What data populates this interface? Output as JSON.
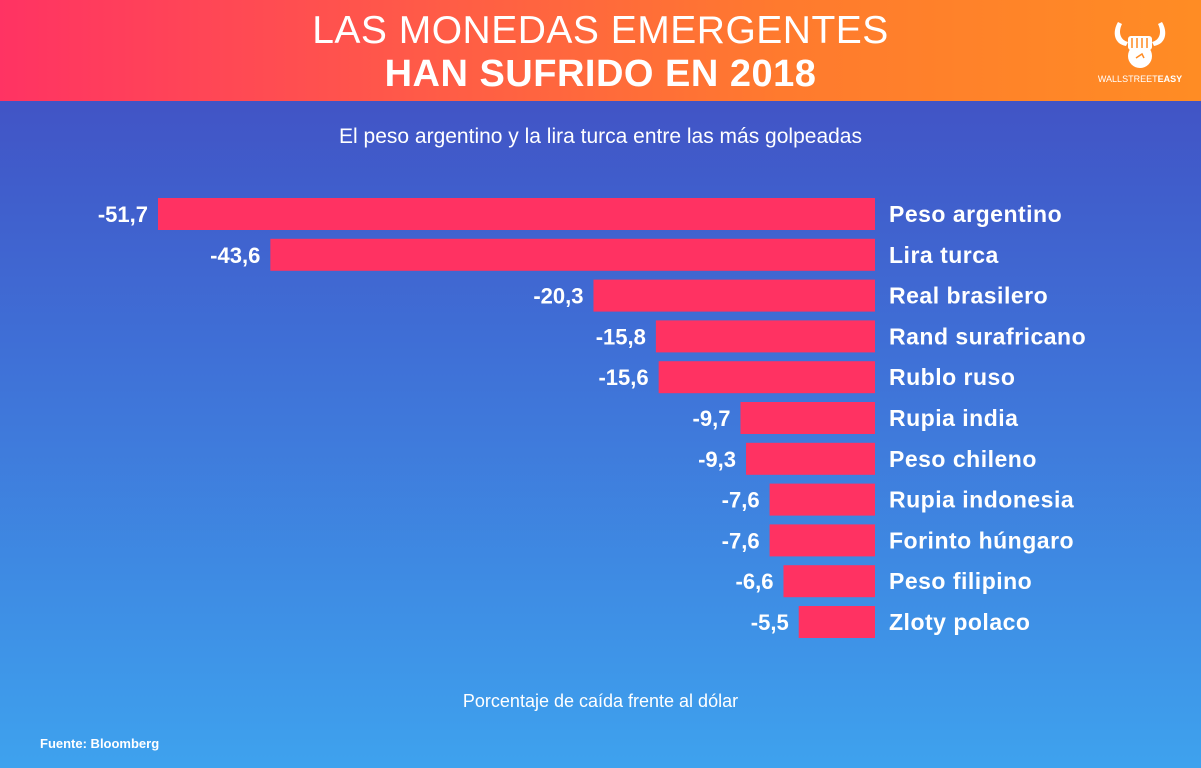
{
  "header": {
    "title_line1": "LAS MONEDAS EMERGENTES",
    "title_line2": "HAN SUFRIDO EN 2018",
    "logo_text_light": "WALLSTREET",
    "logo_text_bold": "EASY"
  },
  "colors": {
    "bar": "#ff3262",
    "header_start": "#ff3363",
    "header_end": "#ff8c24",
    "background_top": "#4249bf",
    "background_bottom": "#3ea2ee"
  },
  "chart_data": {
    "type": "bar",
    "orientation": "horizontal",
    "title": "LAS MONEDAS EMERGENTES HAN SUFRIDO EN 2018",
    "subtitle": "El peso argentino y la lira turca entre las más golpeadas",
    "xlabel": "Porcentaje de caída frente al dólar",
    "ylabel": "",
    "categories": [
      "Peso argentino",
      "Lira turca",
      "Real brasilero",
      "Rand surafricano",
      "Rublo ruso",
      "Rupia india",
      "Peso chileno",
      "Rupia indonesia",
      "Forinto húngaro",
      "Peso filipino",
      "Zloty polaco"
    ],
    "values": [
      -51.7,
      -43.6,
      -20.3,
      -15.8,
      -15.6,
      -9.7,
      -9.3,
      -7.6,
      -7.6,
      -6.6,
      -5.5
    ],
    "value_labels": [
      "-51,7",
      "-43,6",
      "-20,3",
      "-15,8",
      "-15,6",
      "-9,7",
      "-9,3",
      "-7,6",
      "-7,6",
      "-6,6",
      "-5,5"
    ],
    "xlim": [
      -51.7,
      0
    ],
    "grid": false,
    "legend": "none"
  },
  "footer": {
    "source": "Fuente: Bloomberg"
  }
}
